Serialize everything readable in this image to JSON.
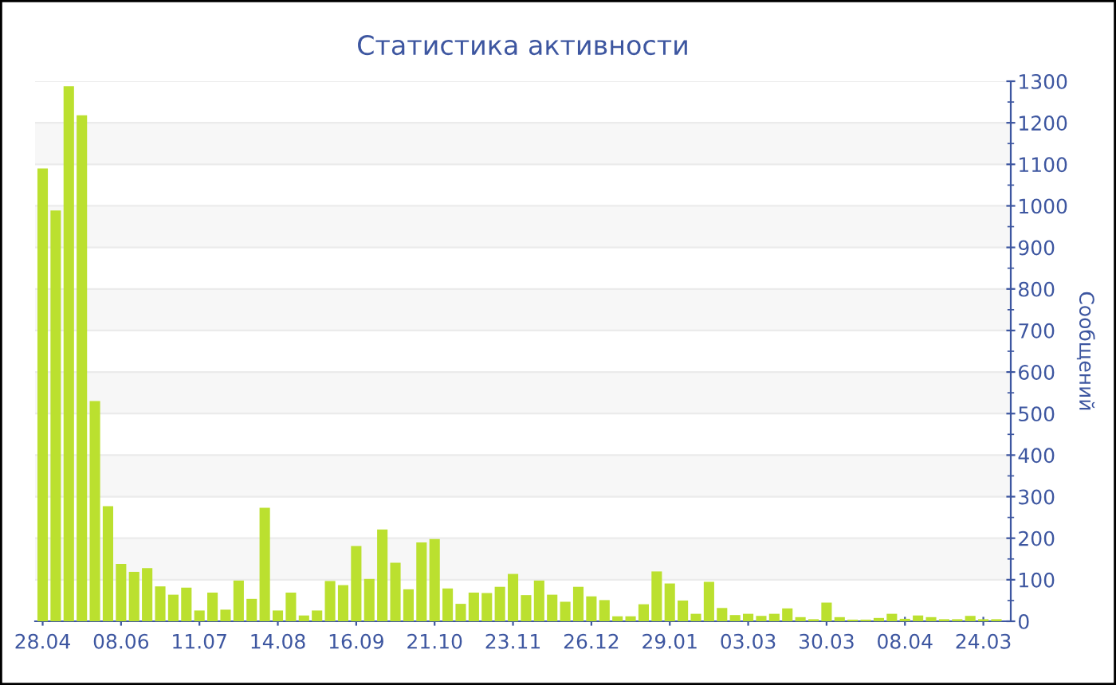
{
  "chart_data": {
    "type": "bar",
    "title": "Статистика активности",
    "ylabel": "Сообщений",
    "categories": [
      "28.04",
      null,
      null,
      null,
      null,
      null,
      "08.06",
      null,
      null,
      null,
      null,
      null,
      "11.07",
      null,
      null,
      null,
      null,
      null,
      "14.08",
      null,
      null,
      null,
      null,
      null,
      "16.09",
      null,
      null,
      null,
      null,
      null,
      "21.10",
      null,
      null,
      null,
      null,
      null,
      "23.11",
      null,
      null,
      null,
      null,
      null,
      "26.12",
      null,
      null,
      null,
      null,
      null,
      "29.01",
      null,
      null,
      null,
      null,
      null,
      "03.03",
      null,
      null,
      null,
      null,
      null,
      "30.03",
      null,
      null,
      null,
      null,
      null,
      "08.04",
      null,
      null,
      null,
      null,
      null,
      "24.03",
      null
    ],
    "values": [
      1090,
      989,
      1288,
      1218,
      530,
      277,
      138,
      119,
      128,
      84,
      64,
      81,
      26,
      69,
      28,
      98,
      54,
      273,
      26,
      69,
      14,
      26,
      97,
      87,
      181,
      102,
      221,
      141,
      77,
      190,
      198,
      79,
      42,
      69,
      68,
      83,
      114,
      63,
      98,
      64,
      47,
      83,
      60,
      51,
      12,
      12,
      41,
      120,
      91,
      50,
      18,
      95,
      32,
      15,
      18,
      13,
      18,
      31,
      10,
      5,
      45,
      10,
      4,
      4,
      8,
      18,
      6,
      14,
      10,
      5,
      5,
      13,
      5,
      5
    ],
    "color": "#bbe02f",
    "ylim": [
      0,
      1300
    ],
    "yticks": [
      0,
      100,
      200,
      300,
      400,
      500,
      600,
      700,
      800,
      900,
      1000,
      1100,
      1200,
      1300
    ],
    "grid": "y"
  }
}
